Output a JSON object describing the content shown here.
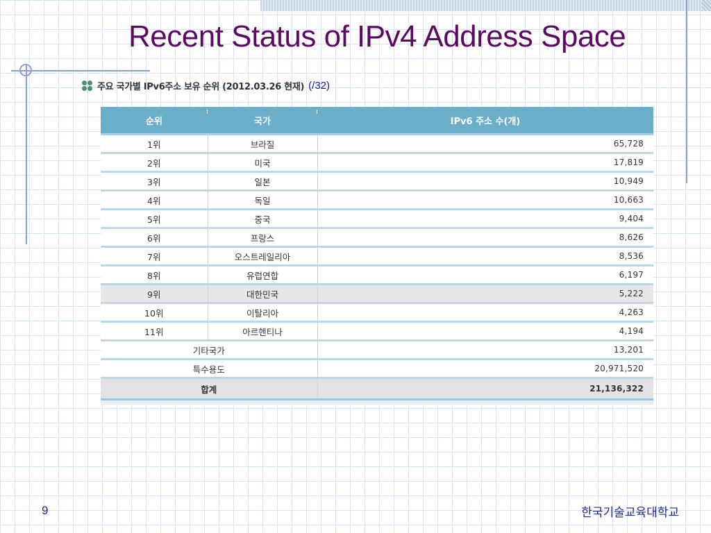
{
  "slide": {
    "title": "Recent Status of IPv4 Address Space",
    "number": "9",
    "footer": "한국기술교육대학교"
  },
  "caption": {
    "text": "주요 국가별 IPv6주소 보유 순위 (2012.03.26 현재)",
    "unit": "(/32)",
    "icon": "clover-icon"
  },
  "colors": {
    "title": "#5c0a62",
    "header_bg": "#6aaec8",
    "highlight_row": "#e7e7ea",
    "footer_text": "#1f2a8c"
  },
  "table": {
    "headers": [
      "순위",
      "국가",
      "IPv6 주소 수(개)"
    ],
    "rows": [
      {
        "rank": "1위",
        "country": "브라질",
        "count": "65,728"
      },
      {
        "rank": "2위",
        "country": "미국",
        "count": "17,819"
      },
      {
        "rank": "3위",
        "country": "일본",
        "count": "10,949"
      },
      {
        "rank": "4위",
        "country": "독일",
        "count": "10,663"
      },
      {
        "rank": "5위",
        "country": "중국",
        "count": "9,404"
      },
      {
        "rank": "6위",
        "country": "프랑스",
        "count": "8,626"
      },
      {
        "rank": "7위",
        "country": "오스트레일리아",
        "count": "8,536"
      },
      {
        "rank": "8위",
        "country": "유럽연합",
        "count": "6,197"
      },
      {
        "rank": "9위",
        "country": "대한민국",
        "count": "5,222"
      },
      {
        "rank": "10위",
        "country": "이탈리아",
        "count": "4,263"
      },
      {
        "rank": "11위",
        "country": "아르헨티나",
        "count": "4,194"
      }
    ],
    "highlighted_row": 8,
    "other": {
      "label": "기타국가",
      "count": "13,201"
    },
    "special": {
      "label": "특수용도",
      "count": "20,971,520"
    },
    "total": {
      "label": "합계",
      "count": "21,136,322"
    }
  }
}
